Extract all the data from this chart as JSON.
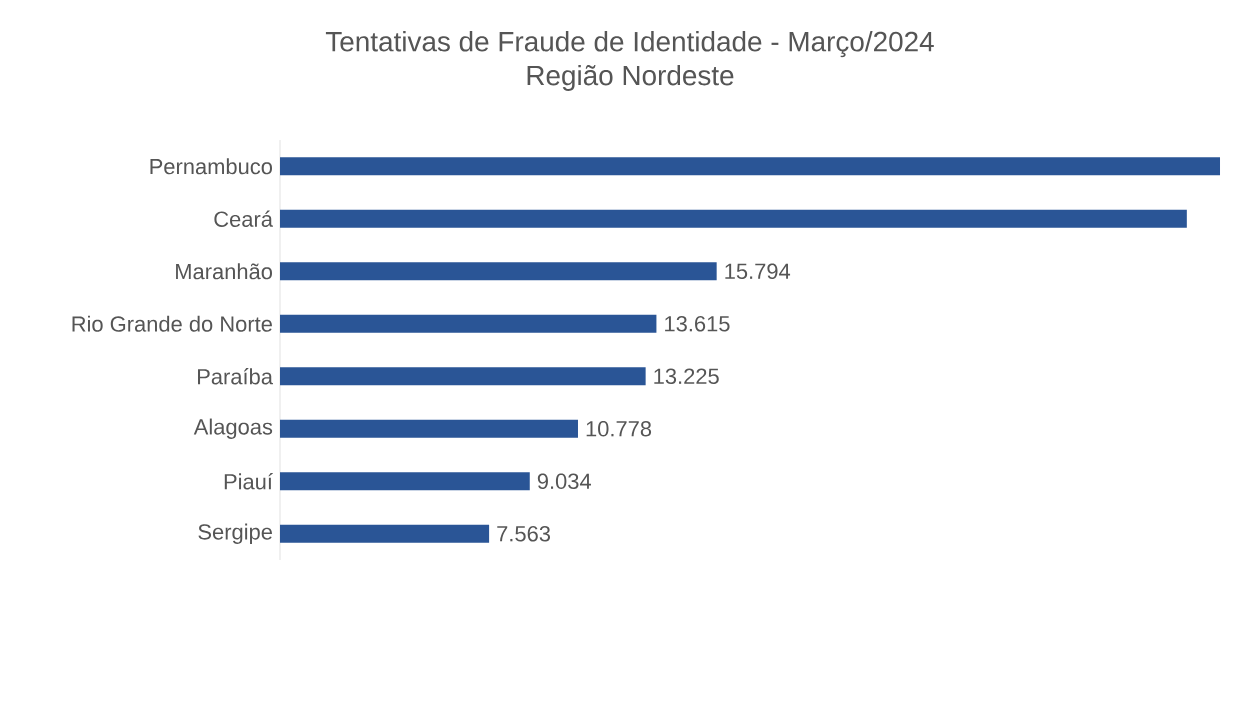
{
  "chart_data": {
    "type": "bar",
    "orientation": "horizontal",
    "title": "Tentativas de Fraude de Identidade - Março/2024",
    "subtitle": "Região Nordeste",
    "categories": [
      "Pernambuco",
      "Ceará",
      "Maranhão",
      "Rio Grande do Norte",
      "Paraíba",
      "Alagoas",
      "Piauí",
      "Sergipe"
    ],
    "values": [
      34000,
      32800,
      15794,
      13615,
      13225,
      10778,
      9034,
      7563
    ],
    "value_labels": [
      null,
      null,
      "15.794",
      "13.615",
      "13.225",
      "10.778",
      "9.034",
      "7.563"
    ],
    "color": "#2a5596"
  }
}
